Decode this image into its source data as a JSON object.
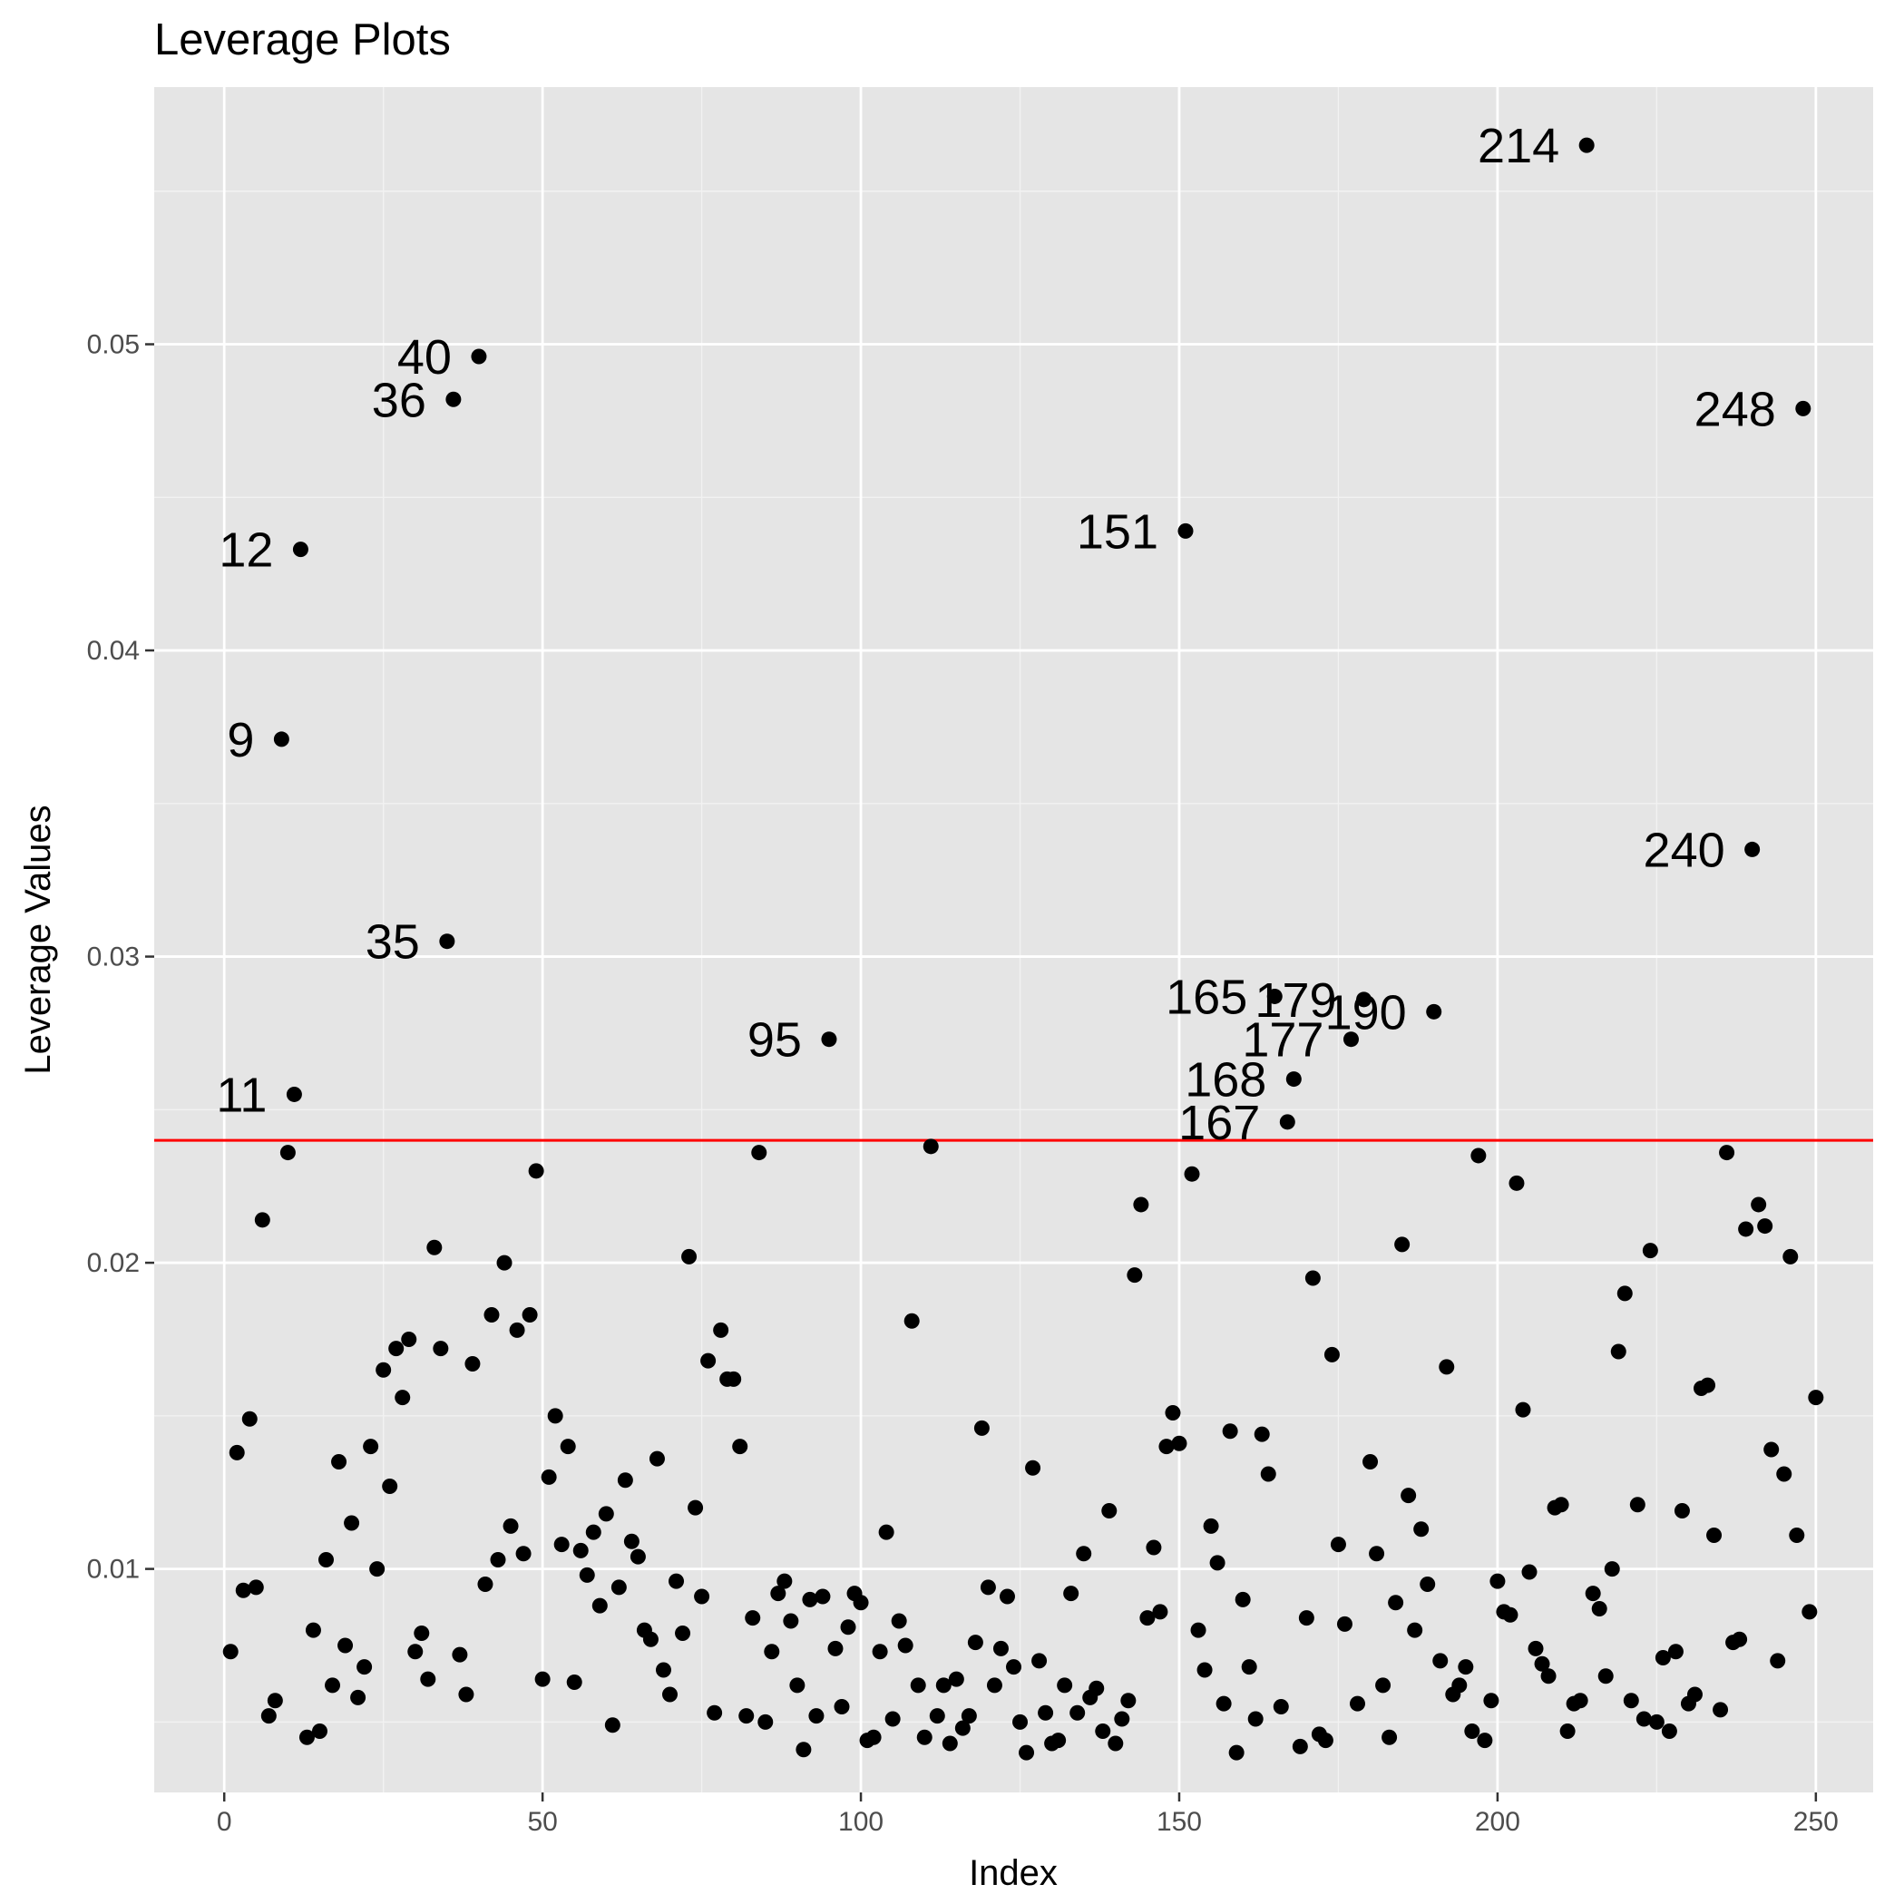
{
  "chart_data": {
    "type": "scatter",
    "title": "Leverage Plots",
    "xlabel": "Index",
    "ylabel": "Leverage Values",
    "xlim": [
      -11,
      259
    ],
    "ylim": [
      0.0027,
      0.0584
    ],
    "x_ticks": [
      0,
      50,
      100,
      150,
      200,
      250
    ],
    "x_tick_labels": [
      "0",
      "50",
      "100",
      "150",
      "200",
      "250"
    ],
    "y_ticks": [
      0.01,
      0.02,
      0.03,
      0.04,
      0.05
    ],
    "y_tick_labels": [
      "0.01",
      "0.02",
      "0.03",
      "0.04",
      "0.05"
    ],
    "grid": true,
    "panel_background": "#e5e5e5",
    "point_color": "#000000",
    "reference_line": {
      "y": 0.024,
      "color": "#ff0000"
    },
    "points": [
      [
        1,
        0.0073
      ],
      [
        2,
        0.0138
      ],
      [
        3,
        0.0093
      ],
      [
        4,
        0.0149
      ],
      [
        5,
        0.0094
      ],
      [
        6,
        0.0214
      ],
      [
        7,
        0.0052
      ],
      [
        8,
        0.0057
      ],
      [
        9,
        0.0371
      ],
      [
        10,
        0.0236
      ],
      [
        11,
        0.0255
      ],
      [
        12,
        0.0433
      ],
      [
        13,
        0.0045
      ],
      [
        14,
        0.008
      ],
      [
        15,
        0.0047
      ],
      [
        16,
        0.0103
      ],
      [
        17,
        0.0062
      ],
      [
        18,
        0.0135
      ],
      [
        19,
        0.0075
      ],
      [
        20,
        0.0115
      ],
      [
        21,
        0.0058
      ],
      [
        22,
        0.0068
      ],
      [
        23,
        0.014
      ],
      [
        24,
        0.01
      ],
      [
        25,
        0.0165
      ],
      [
        26,
        0.0127
      ],
      [
        27,
        0.0172
      ],
      [
        28,
        0.0156
      ],
      [
        29,
        0.0175
      ],
      [
        30,
        0.0073
      ],
      [
        31,
        0.0079
      ],
      [
        32,
        0.0064
      ],
      [
        33,
        0.0205
      ],
      [
        34,
        0.0172
      ],
      [
        35,
        0.0305
      ],
      [
        36,
        0.0482
      ],
      [
        37,
        0.0072
      ],
      [
        38,
        0.0059
      ],
      [
        39,
        0.0167
      ],
      [
        40,
        0.0496
      ],
      [
        41,
        0.0095
      ],
      [
        42,
        0.0183
      ],
      [
        43,
        0.0103
      ],
      [
        44,
        0.02
      ],
      [
        45,
        0.0114
      ],
      [
        46,
        0.0178
      ],
      [
        47,
        0.0105
      ],
      [
        48,
        0.0183
      ],
      [
        49,
        0.023
      ],
      [
        50,
        0.0064
      ],
      [
        51,
        0.013
      ],
      [
        52,
        0.015
      ],
      [
        53,
        0.0108
      ],
      [
        54,
        0.014
      ],
      [
        55,
        0.0063
      ],
      [
        56,
        0.0106
      ],
      [
        57,
        0.0098
      ],
      [
        58,
        0.0112
      ],
      [
        59,
        0.0088
      ],
      [
        60,
        0.0118
      ],
      [
        61,
        0.0049
      ],
      [
        62,
        0.0094
      ],
      [
        63,
        0.0129
      ],
      [
        64,
        0.0109
      ],
      [
        65,
        0.0104
      ],
      [
        66,
        0.008
      ],
      [
        67,
        0.0077
      ],
      [
        68,
        0.0136
      ],
      [
        69,
        0.0067
      ],
      [
        70,
        0.0059
      ],
      [
        71,
        0.0096
      ],
      [
        72,
        0.0079
      ],
      [
        73,
        0.0202
      ],
      [
        74,
        0.012
      ],
      [
        75,
        0.0091
      ],
      [
        76,
        0.0168
      ],
      [
        77,
        0.0053
      ],
      [
        78,
        0.0178
      ],
      [
        79,
        0.0162
      ],
      [
        80,
        0.0162
      ],
      [
        81,
        0.014
      ],
      [
        82,
        0.0052
      ],
      [
        83,
        0.0084
      ],
      [
        84,
        0.0236
      ],
      [
        85,
        0.005
      ],
      [
        86,
        0.0073
      ],
      [
        87,
        0.0092
      ],
      [
        88,
        0.0096
      ],
      [
        89,
        0.0083
      ],
      [
        90,
        0.0062
      ],
      [
        91,
        0.0041
      ],
      [
        92,
        0.009
      ],
      [
        93,
        0.0052
      ],
      [
        94,
        0.0091
      ],
      [
        95,
        0.0273
      ],
      [
        96,
        0.0074
      ],
      [
        97,
        0.0055
      ],
      [
        98,
        0.0081
      ],
      [
        99,
        0.0092
      ],
      [
        100,
        0.0089
      ],
      [
        101,
        0.0044
      ],
      [
        102,
        0.0045
      ],
      [
        103,
        0.0073
      ],
      [
        104,
        0.0112
      ],
      [
        105,
        0.0051
      ],
      [
        106,
        0.0083
      ],
      [
        107,
        0.0075
      ],
      [
        108,
        0.0181
      ],
      [
        109,
        0.0062
      ],
      [
        110,
        0.0045
      ],
      [
        111,
        0.0238
      ],
      [
        112,
        0.0052
      ],
      [
        113,
        0.0062
      ],
      [
        114,
        0.0043
      ],
      [
        115,
        0.0064
      ],
      [
        116,
        0.0048
      ],
      [
        117,
        0.0052
      ],
      [
        118,
        0.0076
      ],
      [
        119,
        0.0146
      ],
      [
        120,
        0.0094
      ],
      [
        121,
        0.0062
      ],
      [
        122,
        0.0074
      ],
      [
        123,
        0.0091
      ],
      [
        124,
        0.0068
      ],
      [
        125,
        0.005
      ],
      [
        126,
        0.004
      ],
      [
        127,
        0.0133
      ],
      [
        128,
        0.007
      ],
      [
        129,
        0.0053
      ],
      [
        130,
        0.0043
      ],
      [
        131,
        0.0044
      ],
      [
        132,
        0.0062
      ],
      [
        133,
        0.0092
      ],
      [
        134,
        0.0053
      ],
      [
        135,
        0.0105
      ],
      [
        136,
        0.0058
      ],
      [
        137,
        0.0061
      ],
      [
        138,
        0.0047
      ],
      [
        139,
        0.0119
      ],
      [
        140,
        0.0043
      ],
      [
        141,
        0.0051
      ],
      [
        142,
        0.0057
      ],
      [
        143,
        0.0196
      ],
      [
        144,
        0.0219
      ],
      [
        145,
        0.0084
      ],
      [
        146,
        0.0107
      ],
      [
        147,
        0.0086
      ],
      [
        148,
        0.014
      ],
      [
        149,
        0.0151
      ],
      [
        150,
        0.0141
      ],
      [
        151,
        0.0439
      ],
      [
        152,
        0.0229
      ],
      [
        153,
        0.008
      ],
      [
        154,
        0.0067
      ],
      [
        155,
        0.0114
      ],
      [
        156,
        0.0102
      ],
      [
        157,
        0.0056
      ],
      [
        158,
        0.0145
      ],
      [
        159,
        0.004
      ],
      [
        160,
        0.009
      ],
      [
        161,
        0.0068
      ],
      [
        162,
        0.0051
      ],
      [
        163,
        0.0144
      ],
      [
        164,
        0.0131
      ],
      [
        165,
        0.0287
      ],
      [
        166,
        0.0055
      ],
      [
        167,
        0.0246
      ],
      [
        168,
        0.026
      ],
      [
        169,
        0.0042
      ],
      [
        170,
        0.0084
      ],
      [
        171,
        0.0195
      ],
      [
        172,
        0.0046
      ],
      [
        173,
        0.0044
      ],
      [
        174,
        0.017
      ],
      [
        175,
        0.0108
      ],
      [
        176,
        0.0082
      ],
      [
        177,
        0.0273
      ],
      [
        178,
        0.0056
      ],
      [
        179,
        0.0286
      ],
      [
        180,
        0.0135
      ],
      [
        181,
        0.0105
      ],
      [
        182,
        0.0062
      ],
      [
        183,
        0.0045
      ],
      [
        184,
        0.0089
      ],
      [
        185,
        0.0206
      ],
      [
        186,
        0.0124
      ],
      [
        187,
        0.008
      ],
      [
        188,
        0.0113
      ],
      [
        189,
        0.0095
      ],
      [
        190,
        0.0282
      ],
      [
        191,
        0.007
      ],
      [
        192,
        0.0166
      ],
      [
        193,
        0.0059
      ],
      [
        194,
        0.0062
      ],
      [
        195,
        0.0068
      ],
      [
        196,
        0.0047
      ],
      [
        197,
        0.0235
      ],
      [
        198,
        0.0044
      ],
      [
        199,
        0.0057
      ],
      [
        200,
        0.0096
      ],
      [
        201,
        0.0086
      ],
      [
        202,
        0.0085
      ],
      [
        203,
        0.0226
      ],
      [
        204,
        0.0152
      ],
      [
        205,
        0.0099
      ],
      [
        206,
        0.0074
      ],
      [
        207,
        0.0069
      ],
      [
        208,
        0.0065
      ],
      [
        209,
        0.012
      ],
      [
        210,
        0.0121
      ],
      [
        211,
        0.0047
      ],
      [
        212,
        0.0056
      ],
      [
        213,
        0.0057
      ],
      [
        214,
        0.0565
      ],
      [
        215,
        0.0092
      ],
      [
        216,
        0.0087
      ],
      [
        217,
        0.0065
      ],
      [
        218,
        0.01
      ],
      [
        219,
        0.0171
      ],
      [
        220,
        0.019
      ],
      [
        221,
        0.0057
      ],
      [
        222,
        0.0121
      ],
      [
        223,
        0.0051
      ],
      [
        224,
        0.0204
      ],
      [
        225,
        0.005
      ],
      [
        226,
        0.0071
      ],
      [
        227,
        0.0047
      ],
      [
        228,
        0.0073
      ],
      [
        229,
        0.0119
      ],
      [
        230,
        0.0056
      ],
      [
        231,
        0.0059
      ],
      [
        232,
        0.0159
      ],
      [
        233,
        0.016
      ],
      [
        234,
        0.0111
      ],
      [
        235,
        0.0054
      ],
      [
        236,
        0.0236
      ],
      [
        237,
        0.0076
      ],
      [
        238,
        0.0077
      ],
      [
        239,
        0.0211
      ],
      [
        240,
        0.0335
      ],
      [
        241,
        0.0219
      ],
      [
        242,
        0.0212
      ],
      [
        243,
        0.0139
      ],
      [
        244,
        0.007
      ],
      [
        245,
        0.0131
      ],
      [
        246,
        0.0202
      ],
      [
        247,
        0.0111
      ],
      [
        248,
        0.0479
      ],
      [
        249,
        0.0086
      ],
      [
        250,
        0.0156
      ]
    ],
    "labeled_points": [
      {
        "x": 214,
        "y": 0.0565,
        "label": "214"
      },
      {
        "x": 40,
        "y": 0.0496,
        "label": "40"
      },
      {
        "x": 36,
        "y": 0.0482,
        "label": "36"
      },
      {
        "x": 248,
        "y": 0.0479,
        "label": "248"
      },
      {
        "x": 151,
        "y": 0.0439,
        "label": "151"
      },
      {
        "x": 12,
        "y": 0.0433,
        "label": "12"
      },
      {
        "x": 9,
        "y": 0.0371,
        "label": "9"
      },
      {
        "x": 240,
        "y": 0.0335,
        "label": "240"
      },
      {
        "x": 35,
        "y": 0.0305,
        "label": "35"
      },
      {
        "x": 165,
        "y": 0.0287,
        "label": "165"
      },
      {
        "x": 179,
        "y": 0.0286,
        "label": "179"
      },
      {
        "x": 190,
        "y": 0.0282,
        "label": "190"
      },
      {
        "x": 95,
        "y": 0.0273,
        "label": "95"
      },
      {
        "x": 177,
        "y": 0.0273,
        "label": "177"
      },
      {
        "x": 168,
        "y": 0.026,
        "label": "168"
      },
      {
        "x": 11,
        "y": 0.0255,
        "label": "11"
      },
      {
        "x": 167,
        "y": 0.0246,
        "label": "167"
      }
    ]
  }
}
